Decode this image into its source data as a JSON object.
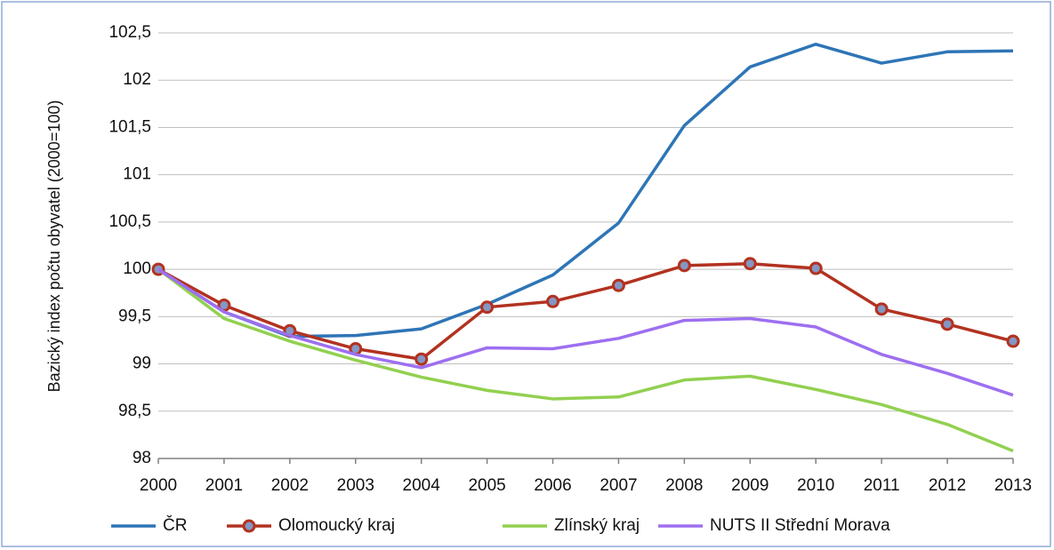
{
  "chart_data": {
    "type": "line",
    "ylabel": "Bazický index počtu obyvatel (2000=100)",
    "categories": [
      "2000",
      "2001",
      "2002",
      "2003",
      "2004",
      "2005",
      "2006",
      "2007",
      "2008",
      "2009",
      "2010",
      "2011",
      "2012",
      "2013"
    ],
    "ylim": [
      98,
      102.5
    ],
    "yticks": [
      98,
      {
        "value": 98.5,
        "label": "98,5"
      },
      99,
      {
        "value": 99.5,
        "label": "99,5"
      },
      100,
      {
        "value": 100.5,
        "label": "100,5"
      },
      101,
      {
        "value": 101.5,
        "label": "101,5"
      },
      102,
      {
        "value": 102.5,
        "label": "102,5"
      }
    ],
    "grid": true,
    "legend": "bottom",
    "series": [
      {
        "name": "ČR",
        "color": "#2e75b6",
        "values": [
          100,
          99.55,
          99.29,
          99.3,
          99.37,
          99.63,
          99.94,
          100.49,
          101.52,
          102.14,
          102.38,
          102.18,
          102.3,
          102.31
        ]
      },
      {
        "name": "Olomoucký kraj",
        "color": "#b23220",
        "marker": "circle",
        "marker_fill": "#8497c4",
        "values": [
          100,
          99.62,
          99.35,
          99.16,
          99.05,
          99.6,
          99.66,
          99.83,
          100.04,
          100.06,
          100.01,
          99.58,
          99.42,
          99.24
        ]
      },
      {
        "name": "Zlínský kraj",
        "color": "#92d050",
        "values": [
          100,
          99.48,
          99.24,
          99.04,
          98.86,
          98.72,
          98.63,
          98.65,
          98.83,
          98.87,
          98.73,
          98.57,
          98.36,
          98.08
        ]
      },
      {
        "name": "NUTS II Střední Morava",
        "color": "#9d6ff0",
        "values": [
          100,
          99.55,
          99.3,
          99.1,
          98.96,
          99.17,
          99.16,
          99.27,
          99.46,
          99.48,
          99.39,
          99.1,
          98.9,
          98.67
        ]
      }
    ]
  }
}
